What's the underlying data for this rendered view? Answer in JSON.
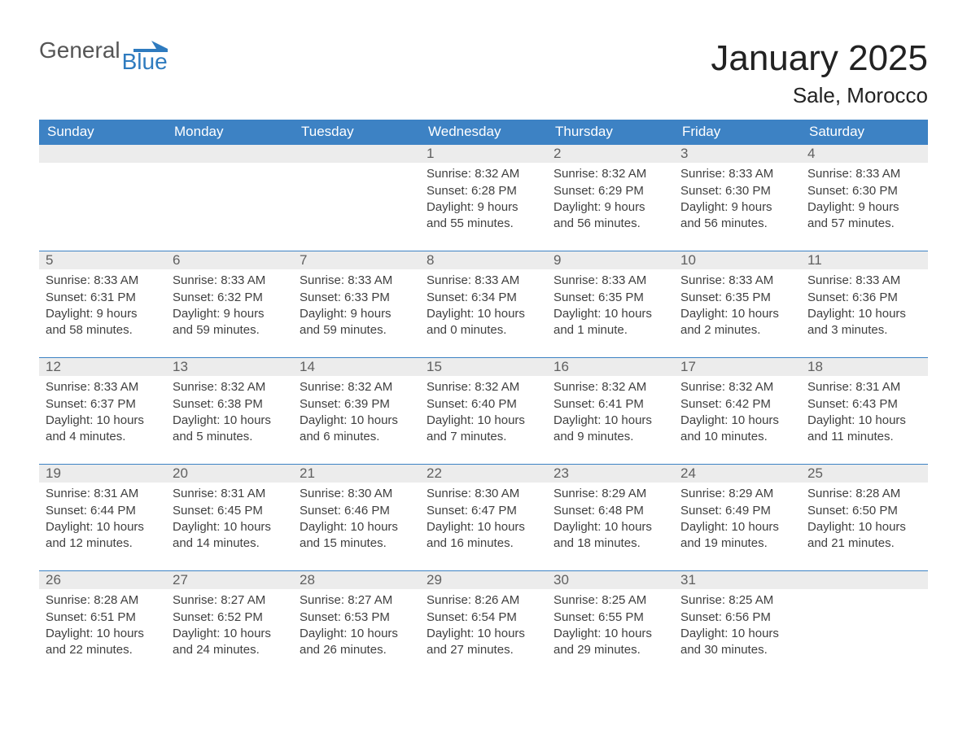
{
  "brand": {
    "part1": "General",
    "part2": "Blue"
  },
  "title": "January 2025",
  "location": "Sale, Morocco",
  "colors": {
    "brand_blue": "#2e7bbf",
    "header_blue": "#3d82c4",
    "daynum_bg": "#ececec",
    "text": "#333333",
    "background": "#ffffff"
  },
  "weekdays": [
    "Sunday",
    "Monday",
    "Tuesday",
    "Wednesday",
    "Thursday",
    "Friday",
    "Saturday"
  ],
  "weeks": [
    [
      null,
      null,
      null,
      {
        "n": "1",
        "sunrise": "Sunrise: 8:32 AM",
        "sunset": "Sunset: 6:28 PM",
        "daylight": "Daylight: 9 hours and 55 minutes."
      },
      {
        "n": "2",
        "sunrise": "Sunrise: 8:32 AM",
        "sunset": "Sunset: 6:29 PM",
        "daylight": "Daylight: 9 hours and 56 minutes."
      },
      {
        "n": "3",
        "sunrise": "Sunrise: 8:33 AM",
        "sunset": "Sunset: 6:30 PM",
        "daylight": "Daylight: 9 hours and 56 minutes."
      },
      {
        "n": "4",
        "sunrise": "Sunrise: 8:33 AM",
        "sunset": "Sunset: 6:30 PM",
        "daylight": "Daylight: 9 hours and 57 minutes."
      }
    ],
    [
      {
        "n": "5",
        "sunrise": "Sunrise: 8:33 AM",
        "sunset": "Sunset: 6:31 PM",
        "daylight": "Daylight: 9 hours and 58 minutes."
      },
      {
        "n": "6",
        "sunrise": "Sunrise: 8:33 AM",
        "sunset": "Sunset: 6:32 PM",
        "daylight": "Daylight: 9 hours and 59 minutes."
      },
      {
        "n": "7",
        "sunrise": "Sunrise: 8:33 AM",
        "sunset": "Sunset: 6:33 PM",
        "daylight": "Daylight: 9 hours and 59 minutes."
      },
      {
        "n": "8",
        "sunrise": "Sunrise: 8:33 AM",
        "sunset": "Sunset: 6:34 PM",
        "daylight": "Daylight: 10 hours and 0 minutes."
      },
      {
        "n": "9",
        "sunrise": "Sunrise: 8:33 AM",
        "sunset": "Sunset: 6:35 PM",
        "daylight": "Daylight: 10 hours and 1 minute."
      },
      {
        "n": "10",
        "sunrise": "Sunrise: 8:33 AM",
        "sunset": "Sunset: 6:35 PM",
        "daylight": "Daylight: 10 hours and 2 minutes."
      },
      {
        "n": "11",
        "sunrise": "Sunrise: 8:33 AM",
        "sunset": "Sunset: 6:36 PM",
        "daylight": "Daylight: 10 hours and 3 minutes."
      }
    ],
    [
      {
        "n": "12",
        "sunrise": "Sunrise: 8:33 AM",
        "sunset": "Sunset: 6:37 PM",
        "daylight": "Daylight: 10 hours and 4 minutes."
      },
      {
        "n": "13",
        "sunrise": "Sunrise: 8:32 AM",
        "sunset": "Sunset: 6:38 PM",
        "daylight": "Daylight: 10 hours and 5 minutes."
      },
      {
        "n": "14",
        "sunrise": "Sunrise: 8:32 AM",
        "sunset": "Sunset: 6:39 PM",
        "daylight": "Daylight: 10 hours and 6 minutes."
      },
      {
        "n": "15",
        "sunrise": "Sunrise: 8:32 AM",
        "sunset": "Sunset: 6:40 PM",
        "daylight": "Daylight: 10 hours and 7 minutes."
      },
      {
        "n": "16",
        "sunrise": "Sunrise: 8:32 AM",
        "sunset": "Sunset: 6:41 PM",
        "daylight": "Daylight: 10 hours and 9 minutes."
      },
      {
        "n": "17",
        "sunrise": "Sunrise: 8:32 AM",
        "sunset": "Sunset: 6:42 PM",
        "daylight": "Daylight: 10 hours and 10 minutes."
      },
      {
        "n": "18",
        "sunrise": "Sunrise: 8:31 AM",
        "sunset": "Sunset: 6:43 PM",
        "daylight": "Daylight: 10 hours and 11 minutes."
      }
    ],
    [
      {
        "n": "19",
        "sunrise": "Sunrise: 8:31 AM",
        "sunset": "Sunset: 6:44 PM",
        "daylight": "Daylight: 10 hours and 12 minutes."
      },
      {
        "n": "20",
        "sunrise": "Sunrise: 8:31 AM",
        "sunset": "Sunset: 6:45 PM",
        "daylight": "Daylight: 10 hours and 14 minutes."
      },
      {
        "n": "21",
        "sunrise": "Sunrise: 8:30 AM",
        "sunset": "Sunset: 6:46 PM",
        "daylight": "Daylight: 10 hours and 15 minutes."
      },
      {
        "n": "22",
        "sunrise": "Sunrise: 8:30 AM",
        "sunset": "Sunset: 6:47 PM",
        "daylight": "Daylight: 10 hours and 16 minutes."
      },
      {
        "n": "23",
        "sunrise": "Sunrise: 8:29 AM",
        "sunset": "Sunset: 6:48 PM",
        "daylight": "Daylight: 10 hours and 18 minutes."
      },
      {
        "n": "24",
        "sunrise": "Sunrise: 8:29 AM",
        "sunset": "Sunset: 6:49 PM",
        "daylight": "Daylight: 10 hours and 19 minutes."
      },
      {
        "n": "25",
        "sunrise": "Sunrise: 8:28 AM",
        "sunset": "Sunset: 6:50 PM",
        "daylight": "Daylight: 10 hours and 21 minutes."
      }
    ],
    [
      {
        "n": "26",
        "sunrise": "Sunrise: 8:28 AM",
        "sunset": "Sunset: 6:51 PM",
        "daylight": "Daylight: 10 hours and 22 minutes."
      },
      {
        "n": "27",
        "sunrise": "Sunrise: 8:27 AM",
        "sunset": "Sunset: 6:52 PM",
        "daylight": "Daylight: 10 hours and 24 minutes."
      },
      {
        "n": "28",
        "sunrise": "Sunrise: 8:27 AM",
        "sunset": "Sunset: 6:53 PM",
        "daylight": "Daylight: 10 hours and 26 minutes."
      },
      {
        "n": "29",
        "sunrise": "Sunrise: 8:26 AM",
        "sunset": "Sunset: 6:54 PM",
        "daylight": "Daylight: 10 hours and 27 minutes."
      },
      {
        "n": "30",
        "sunrise": "Sunrise: 8:25 AM",
        "sunset": "Sunset: 6:55 PM",
        "daylight": "Daylight: 10 hours and 29 minutes."
      },
      {
        "n": "31",
        "sunrise": "Sunrise: 8:25 AM",
        "sunset": "Sunset: 6:56 PM",
        "daylight": "Daylight: 10 hours and 30 minutes."
      },
      null
    ]
  ]
}
